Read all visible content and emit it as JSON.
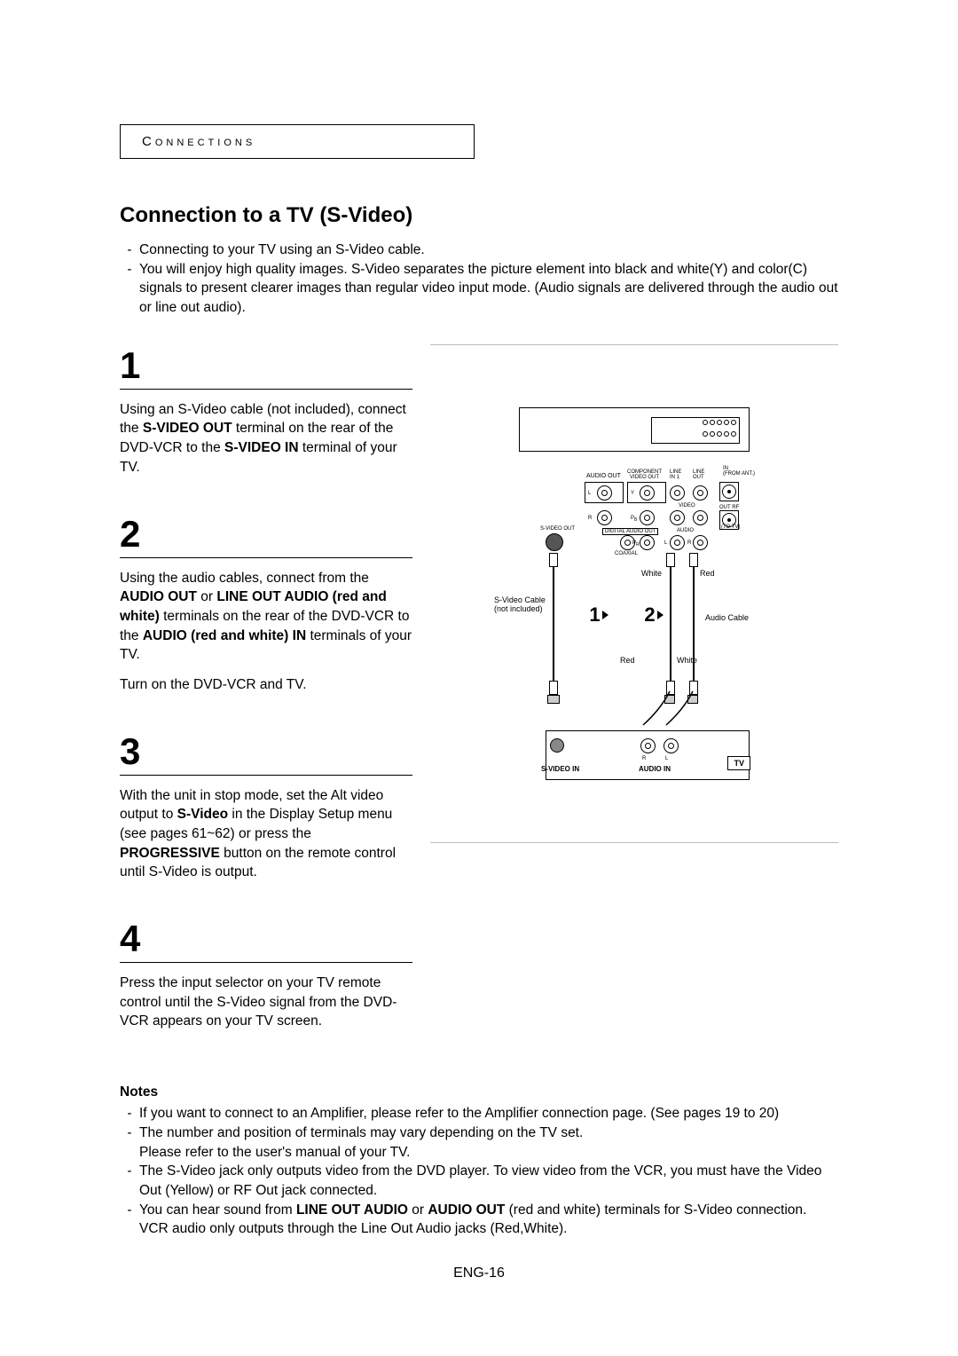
{
  "sectionLabel": "Connections",
  "title": "Connection to a TV (S-Video)",
  "intro": [
    "Connecting to your TV using an S-Video cable.",
    "You will enjoy high quality images. S-Video separates the picture element into black and white(Y) and color(C) signals to present clearer images than regular video input mode. (Audio signals are delivered through the audio out or line out audio)."
  ],
  "steps": [
    {
      "num": "1",
      "parts": [
        {
          "t": "Using an S-Video cable (not included), connect the "
        },
        {
          "t": "S-VIDEO OUT",
          "b": true
        },
        {
          "t": " terminal on the rear of the DVD-VCR to the "
        },
        {
          "t": "S-VIDEO IN",
          "b": true
        },
        {
          "t": " terminal of your TV."
        }
      ]
    },
    {
      "num": "2",
      "parts": [
        {
          "t": "Using the audio cables, connect from the "
        },
        {
          "t": "AUDIO OUT",
          "b": true
        },
        {
          "t": " or "
        },
        {
          "t": "LINE OUT AUDIO (red and white)",
          "b": true
        },
        {
          "t": " terminals on the rear of the DVD-VCR to the "
        },
        {
          "t": "AUDIO (red and white) IN",
          "b": true
        },
        {
          "t": " terminals of your TV."
        }
      ],
      "extra": "Turn on the DVD-VCR and TV."
    },
    {
      "num": "3",
      "parts": [
        {
          "t": "With the unit in stop mode, set the Alt video output to "
        },
        {
          "t": "S-Video",
          "b": true
        },
        {
          "t": " in the Display Setup menu (see pages 61~62) or press the "
        },
        {
          "t": "PROGRESSIVE",
          "b": true
        },
        {
          "t": " button on the remote control until S-Video is output."
        }
      ]
    },
    {
      "num": "4",
      "parts": [
        {
          "t": "Press the input selector on your TV remote control until the S-Video signal from the DVD-VCR appears on your TV screen."
        }
      ]
    }
  ],
  "notesTitle": "Notes",
  "notes": [
    [
      "If you want to connect to an Amplifier, please refer to the Amplifier connection page. (See pages 19 to 20)"
    ],
    [
      "The number and position of terminals may vary depending on the TV set.",
      "Please refer to the user's manual of your TV."
    ],
    [
      "The S-Video jack only outputs video from the DVD player. To view video from the VCR, you must have the Video Out (Yellow) or RF Out jack connected."
    ],
    [
      {
        "t": "You can hear sound from "
      },
      {
        "t": "LINE OUT AUDIO",
        "b": true
      },
      {
        "t": " or "
      },
      {
        "t": "AUDIO OUT",
        "b": true
      },
      {
        "t": " (red and white) terminals for S-Video connection. VCR audio only outputs through the Line Out Audio jacks (Red,White)."
      }
    ]
  ],
  "pageNum": "ENG-16",
  "diagram": {
    "topLabels": {
      "audioOut": "AUDIO OUT",
      "componentVideoOut": "COMPONENT\nVIDEO OUT",
      "lineIn1": "LINE\nIN 1",
      "lineOut": "LINE\nOUT",
      "inFromAnt": "IN\n(FROM ANT.)",
      "video": "VIDEO",
      "outRf": "OUT   RF",
      "toTv": "(TO TV)",
      "sVideoOut": "S-VIDEO OUT",
      "digitalAudioOut": "DIGITAL AUDIO OUT",
      "audio": "AUDIO",
      "coaxial": "COAXIAL",
      "L": "L",
      "R": "R",
      "Y": "Y",
      "Pb": "P",
      "Pr": "P"
    },
    "cableLabels": {
      "white": "White",
      "red": "Red",
      "svideoCable": "S-Video Cable\n(not included)",
      "audioCable": "Audio Cable"
    },
    "stepNums": {
      "one": "1",
      "two": "2"
    },
    "tv": {
      "label": "TV",
      "svideoIn": "S-VIDEO IN",
      "audioIn": "AUDIO IN",
      "R": "R",
      "L": "L"
    }
  }
}
